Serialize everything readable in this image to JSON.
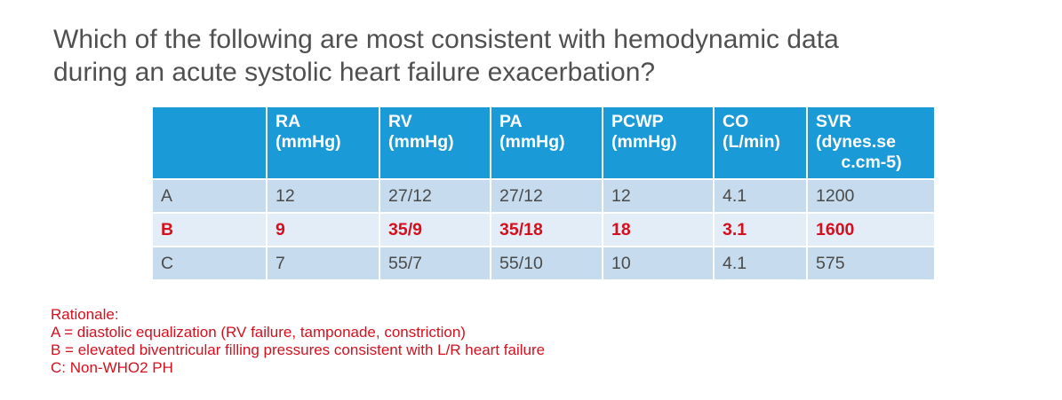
{
  "question": {
    "line1": "Which of the following are most consistent with hemodynamic data",
    "line2": "during an acute systolic heart failure exacerbation?"
  },
  "table": {
    "headers": [
      {
        "l1": "RA",
        "l2": "(mmHg)",
        "l3": ""
      },
      {
        "l1": "RV",
        "l2": "(mmHg)",
        "l3": ""
      },
      {
        "l1": "PA",
        "l2": "(mmHg)",
        "l3": ""
      },
      {
        "l1": "PCWP",
        "l2": "(mmHg)",
        "l3": ""
      },
      {
        "l1": "CO",
        "l2": "(L/min)",
        "l3": ""
      },
      {
        "l1": "SVR",
        "l2": "(dynes.se",
        "l3": "c.cm-5)"
      }
    ],
    "rows": [
      {
        "label": "A",
        "values": [
          "12",
          "27/12",
          "27/12",
          "12",
          "4.1",
          "1200"
        ]
      },
      {
        "label": "B",
        "values": [
          "9",
          "35/9",
          "35/18",
          "18",
          "3.1",
          "1600"
        ]
      },
      {
        "label": "C",
        "values": [
          "7",
          "55/7",
          "55/10",
          "10",
          "4.1",
          "575"
        ]
      }
    ],
    "highlight_color": "#d4101e",
    "header_color": "#1a9ad7"
  },
  "rationale": {
    "title": "Rationale:",
    "lines": [
      "A = diastolic equalization (RV failure, tamponade, constriction)",
      "B = elevated biventricular filling pressures consistent with L/R heart failure",
      "C: Non-WHO2 PH"
    ]
  }
}
